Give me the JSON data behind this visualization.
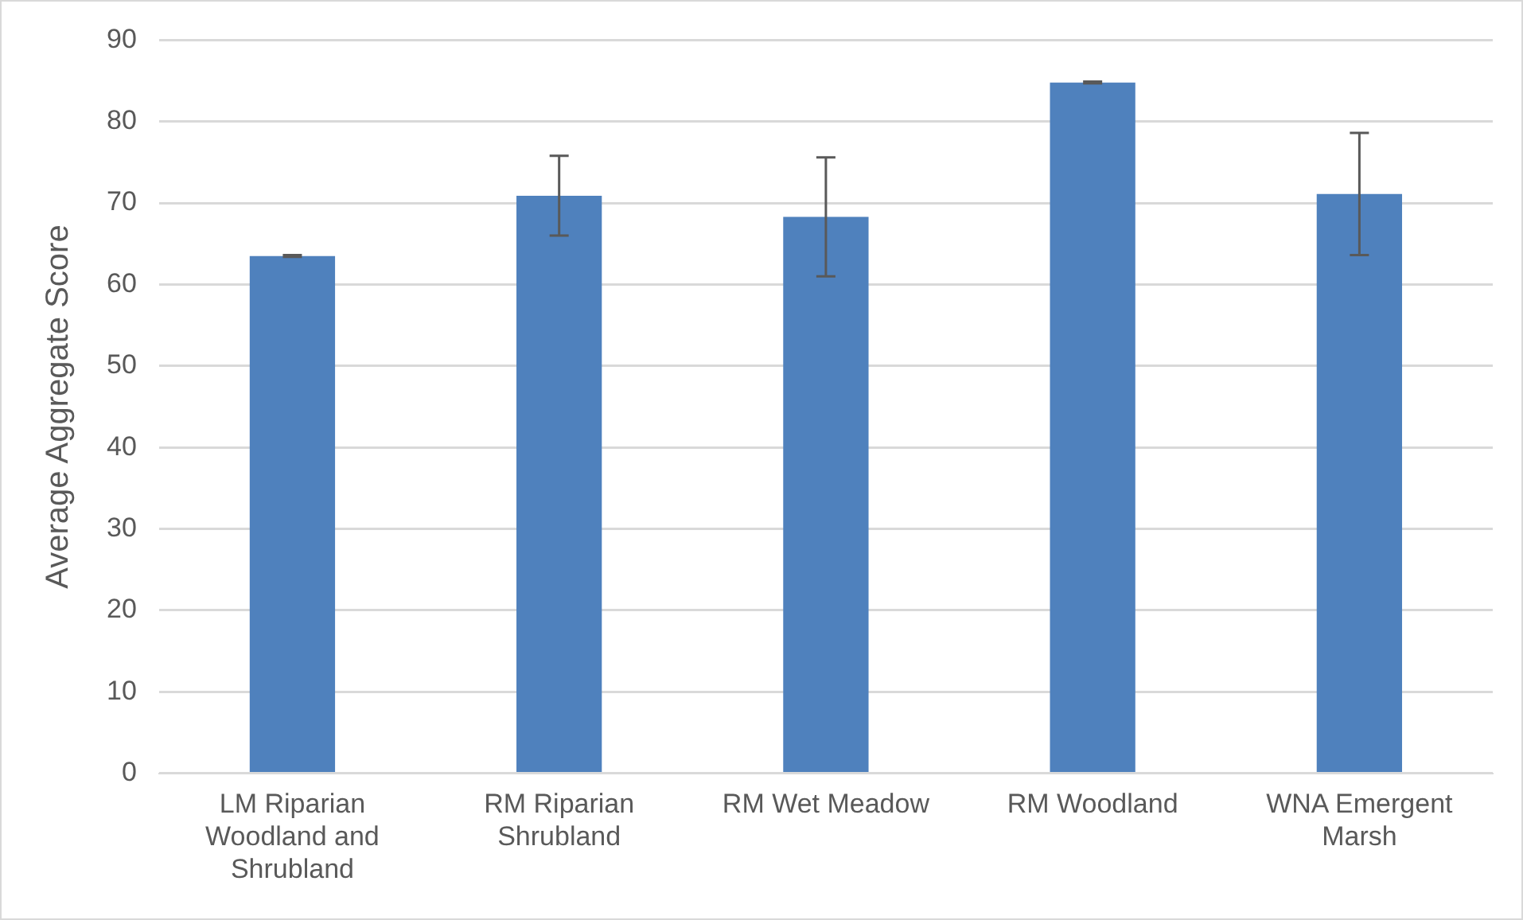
{
  "chart_data": {
    "type": "bar",
    "ylabel": "Average Aggregate Score",
    "categories": [
      "LM Riparian Woodland and Shrubland",
      "RM Riparian Shrubland",
      "RM Wet Meadow",
      "RM Woodland",
      "WNA Emergent Marsh"
    ],
    "values": [
      63.5,
      70.9,
      68.3,
      84.8,
      71.1
    ],
    "errors": [
      0.1,
      4.9,
      7.3,
      0.1,
      7.5
    ],
    "color": "#4f81bd",
    "ylim": [
      0,
      90
    ],
    "yticks": [
      0,
      10,
      20,
      30,
      40,
      50,
      60,
      70,
      80,
      90
    ],
    "grid": "y",
    "legend": false
  }
}
